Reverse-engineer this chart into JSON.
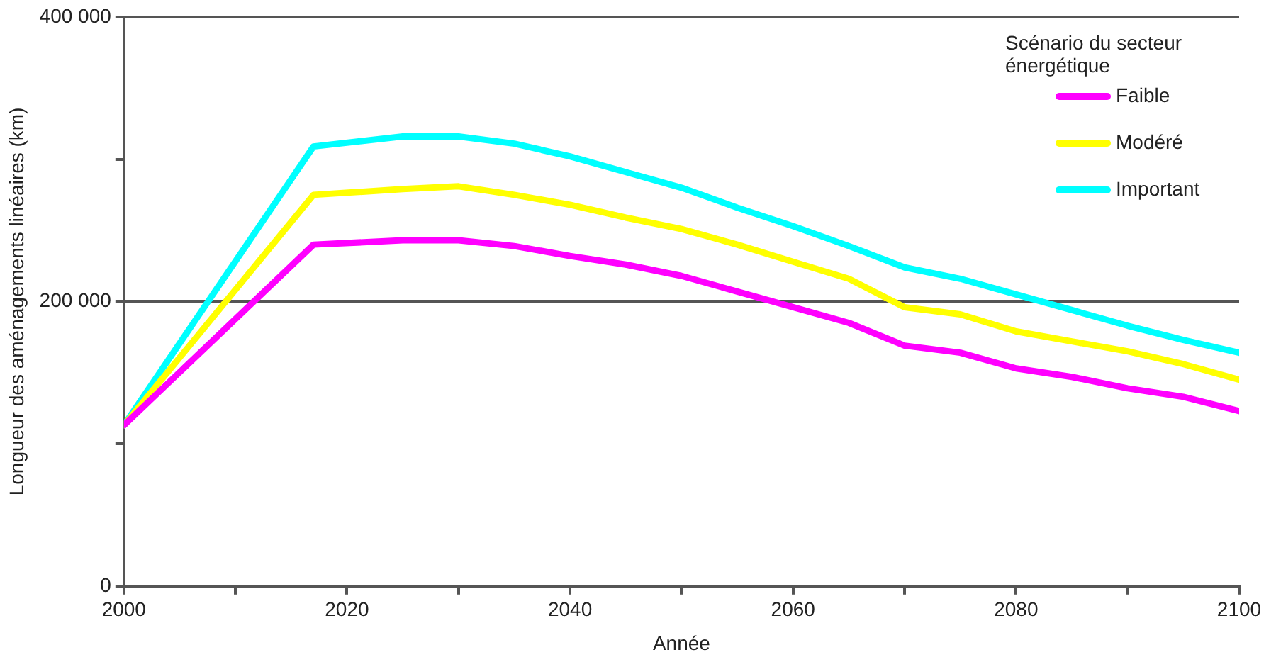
{
  "chart_data": {
    "type": "line",
    "xlabel": "Année",
    "ylabel": "Longueur des aménagements linéaires (km)",
    "legend_title": "Scénario du secteur énergétique",
    "xlim": [
      2000,
      2100
    ],
    "xticks": [
      2000,
      {
        "value": 2010,
        "label": null
      },
      2020,
      {
        "value": 2030,
        "label": null
      },
      2040,
      {
        "value": 2050,
        "label": null
      },
      2060,
      {
        "value": 2070,
        "label": null
      },
      2080,
      {
        "value": 2090,
        "label": null
      },
      2100
    ],
    "ylim": [
      0,
      400000
    ],
    "yticks": [
      0,
      {
        "value": 100000,
        "label": null
      },
      {
        "value": 200000,
        "label": "200 000"
      },
      {
        "value": 300000,
        "label": null
      },
      {
        "value": 400000,
        "label": "400 000"
      }
    ],
    "grid": "y",
    "legend": "top right",
    "marker": "none",
    "line_style": "solid",
    "x": [
      2000,
      2017,
      2025,
      2030,
      2035,
      2040,
      2045,
      2050,
      2055,
      2060,
      2065,
      2070,
      2075,
      2080,
      2085,
      2090,
      2095,
      2100
    ],
    "series": [
      {
        "name": "Faible",
        "color": "#ff00ff",
        "values": [
          113000,
          240000,
          243000,
          243000,
          239000,
          232000,
          226000,
          218000,
          207000,
          196000,
          185000,
          169000,
          164000,
          153000,
          147000,
          139000,
          133000,
          123000
        ]
      },
      {
        "name": "Modéré",
        "color": "#ffff00",
        "values": [
          113000,
          275000,
          279000,
          281000,
          275000,
          268000,
          259000,
          251000,
          240000,
          228000,
          216000,
          196000,
          191000,
          179000,
          172000,
          165000,
          156000,
          145000
        ]
      },
      {
        "name": "Important",
        "color": "#00ffff",
        "values": [
          113000,
          309000,
          316000,
          316000,
          311000,
          302000,
          291000,
          280000,
          266000,
          253000,
          239000,
          224000,
          216000,
          205000,
          194000,
          183000,
          173000,
          164000
        ]
      }
    ]
  }
}
